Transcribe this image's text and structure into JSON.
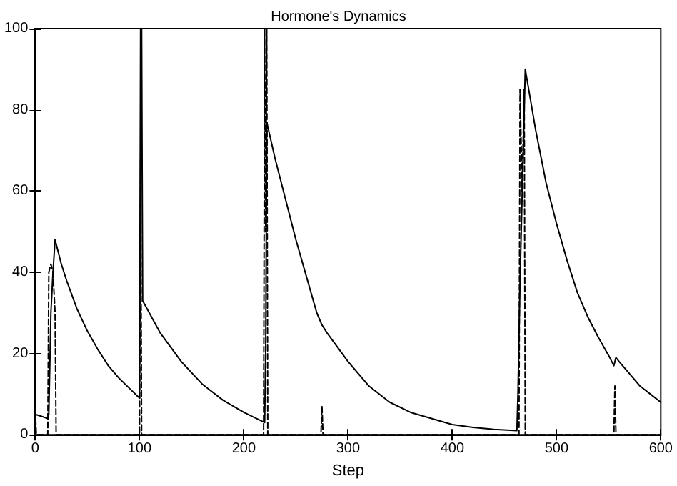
{
  "chart_data": {
    "type": "line",
    "title": "Hormone's Dynamics",
    "xlabel": "Step",
    "xlim": [
      0,
      600
    ],
    "xticks": [
      0,
      100,
      200,
      300,
      400,
      500,
      600
    ],
    "ylim": [
      0,
      100
    ],
    "yticks": [
      0,
      20,
      40,
      60,
      80,
      100
    ],
    "grid": false,
    "marker": "none",
    "series": [
      {
        "color": "#000000",
        "line_style": "solid",
        "x": [
          0,
          5,
          12,
          13,
          15,
          17,
          19,
          25,
          30,
          40,
          50,
          60,
          70,
          80,
          90,
          100,
          101,
          102,
          103,
          120,
          140,
          160,
          180,
          200,
          220,
          221,
          222,
          230,
          240,
          250,
          260,
          270,
          275,
          280,
          300,
          320,
          340,
          360,
          380,
          400,
          420,
          440,
          462,
          463,
          465,
          470,
          480,
          490,
          500,
          510,
          520,
          530,
          540,
          550,
          555,
          557,
          560,
          570,
          580,
          590,
          600
        ],
        "values": [
          5,
          4.6,
          4,
          5,
          30,
          40,
          48,
          42,
          38,
          31,
          25.5,
          21,
          17,
          14,
          11.5,
          9,
          100,
          100,
          33,
          25,
          18,
          12.5,
          8.5,
          5.5,
          3,
          20,
          77,
          68,
          58,
          48,
          39,
          30,
          27,
          25,
          18,
          12,
          8,
          5.5,
          4,
          2.5,
          1.8,
          1.3,
          1,
          10,
          38,
          90,
          75,
          62,
          52,
          43,
          35,
          29,
          24,
          19.5,
          17,
          19,
          18,
          15,
          12,
          10,
          8
        ]
      },
      {
        "color": "#000000",
        "line_style": "dashed",
        "x": [
          0,
          1,
          12,
          13,
          15,
          17,
          19,
          20,
          100,
          101,
          102,
          219,
          220,
          221,
          222,
          223,
          274,
          275,
          276,
          464,
          465,
          467,
          469,
          470,
          555,
          556,
          557,
          600
        ],
        "values": [
          6,
          0,
          0,
          40,
          42,
          40,
          30,
          0,
          0,
          68,
          0,
          0,
          100,
          50,
          100,
          0,
          0,
          7,
          0,
          0,
          85,
          60,
          85,
          0,
          0,
          12,
          0,
          0
        ]
      }
    ]
  }
}
